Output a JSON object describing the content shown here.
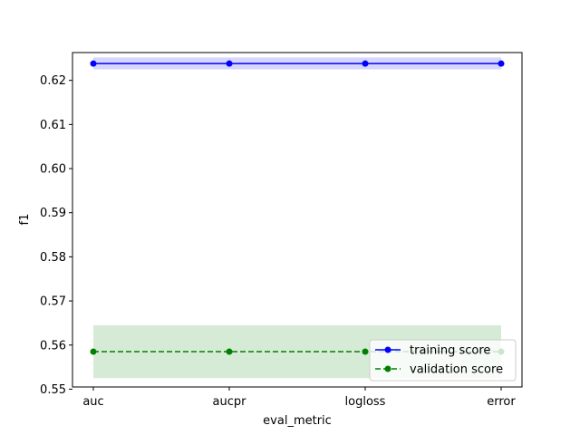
{
  "chart_data": {
    "type": "line",
    "categories": [
      "auc",
      "aucpr",
      "logloss",
      "error"
    ],
    "xlabel": "eval_metric",
    "ylabel": "f1",
    "ylim": [
      0.5505,
      0.6263
    ],
    "yticks": [
      "0.55",
      "0.56",
      "0.57",
      "0.58",
      "0.59",
      "0.60",
      "0.61",
      "0.62"
    ],
    "grid": false,
    "legend_placement": "lower-right",
    "series": [
      {
        "name": "training score",
        "values": [
          0.6238,
          0.6238,
          0.6238,
          0.6238
        ],
        "band_low": [
          0.6225,
          0.6225,
          0.6225,
          0.6225
        ],
        "band_high": [
          0.6252,
          0.6252,
          0.6252,
          0.6252
        ],
        "color": "#0000ff",
        "band_color": "#0000ff",
        "line_style": "solid"
      },
      {
        "name": "validation score",
        "values": [
          0.5585,
          0.5585,
          0.5585,
          0.5585
        ],
        "band_low": [
          0.5525,
          0.5525,
          0.5525,
          0.5525
        ],
        "band_high": [
          0.5645,
          0.5645,
          0.5645,
          0.5645
        ],
        "color": "#008000",
        "band_color": "#008000",
        "line_style": "dashed"
      }
    ]
  }
}
